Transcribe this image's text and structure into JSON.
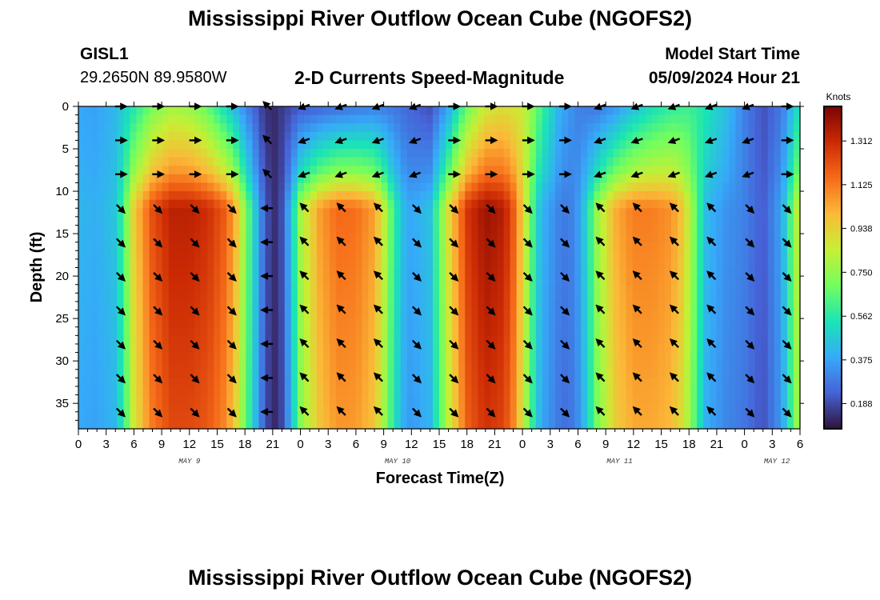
{
  "page": {
    "title": "Mississippi River Outflow Ocean Cube (NGOFS2)",
    "title_repeat": "Mississippi River Outflow Ocean Cube (NGOFS2)",
    "station_id": "GISL1",
    "station_coords": "29.2650N  89.9580W",
    "subtitle": "2-D Currents Speed-Magnitude",
    "model_start_label": "Model Start Time",
    "model_start_value": "05/09/2024 Hour 21"
  },
  "chart_data": {
    "type": "heatmap",
    "title": "2-D Currents Speed-Magnitude",
    "xlabel": "Forecast Time(Z)",
    "ylabel": "Depth (ft)",
    "x_range_hours": [
      0,
      78
    ],
    "x_tick_labels": [
      "0",
      "3",
      "6",
      "9",
      "12",
      "15",
      "18",
      "21",
      "0",
      "3",
      "6",
      "9",
      "12",
      "15",
      "18",
      "21",
      "0",
      "3",
      "6",
      "9",
      "12",
      "15",
      "18",
      "21",
      "0",
      "3",
      "6"
    ],
    "date_labels": [
      {
        "text": "MAY 9",
        "hour": 12
      },
      {
        "text": "MAY 10",
        "hour": 34.5
      },
      {
        "text": "MAY 11",
        "hour": 58.5
      },
      {
        "text": "MAY 12",
        "hour": 75.5
      }
    ],
    "ylim": [
      38,
      0
    ],
    "y_ticks": [
      0,
      5,
      10,
      15,
      20,
      25,
      30,
      35
    ],
    "colorbar": {
      "label": "Knots",
      "range": [
        0.08,
        1.46
      ],
      "ticks": [
        "1.312",
        "1.125",
        "0.938",
        "0.750",
        "0.562",
        "0.375",
        "0.188"
      ],
      "tick_values": [
        1.312,
        1.125,
        0.938,
        0.75,
        0.562,
        0.375,
        0.188
      ],
      "colors": [
        "#30123b",
        "#4662d7",
        "#36aaf9",
        "#1ae4b6",
        "#72fe5e",
        "#c7ef34",
        "#fbb938",
        "#f66b19",
        "#cb2a04",
        "#7a0403"
      ]
    },
    "speed_profile_upper": {
      "description": "approx. surface/near-surface speed (knots) vs forecast hour",
      "hours": [
        0,
        2,
        4,
        6,
        8,
        10,
        12,
        14,
        16,
        18,
        20,
        21,
        22,
        24,
        26,
        28,
        30,
        32,
        34,
        36,
        38,
        40,
        42,
        44,
        46,
        48,
        50,
        52,
        54,
        56,
        58,
        60,
        62,
        64,
        66,
        68,
        70,
        72,
        74,
        76,
        78
      ],
      "values": [
        0.38,
        0.37,
        0.42,
        0.55,
        0.7,
        0.78,
        0.76,
        0.66,
        0.5,
        0.32,
        0.16,
        0.12,
        0.16,
        0.22,
        0.24,
        0.26,
        0.28,
        0.3,
        0.28,
        0.24,
        0.2,
        0.38,
        0.68,
        0.86,
        0.9,
        0.86,
        0.62,
        0.4,
        0.3,
        0.28,
        0.34,
        0.44,
        0.52,
        0.58,
        0.6,
        0.54,
        0.44,
        0.3,
        0.2,
        0.28,
        0.55
      ]
    },
    "speed_profile_deep": {
      "description": "approx. speed (knots) below 11 ft vs forecast hour",
      "hours": [
        0,
        2,
        4,
        5,
        6,
        8,
        10,
        12,
        14,
        16,
        17,
        18,
        19,
        20,
        21,
        22,
        23,
        24,
        26,
        28,
        30,
        32,
        33,
        34,
        35,
        36,
        38,
        40,
        42,
        44,
        46,
        47,
        48,
        49,
        50,
        52,
        53,
        54,
        55,
        56,
        58,
        60,
        62,
        64,
        65,
        66,
        67,
        68,
        70,
        72,
        74,
        76,
        78
      ],
      "values": [
        0.42,
        0.4,
        0.46,
        0.65,
        0.95,
        1.22,
        1.34,
        1.34,
        1.3,
        1.18,
        1.0,
        0.75,
        0.5,
        0.26,
        0.12,
        0.2,
        0.45,
        0.78,
        1.05,
        1.16,
        1.15,
        1.05,
        0.85,
        0.62,
        0.44,
        0.38,
        0.45,
        0.9,
        1.28,
        1.4,
        1.35,
        1.2,
        0.95,
        0.65,
        0.42,
        0.3,
        0.28,
        0.36,
        0.52,
        0.75,
        1.02,
        1.12,
        1.12,
        1.08,
        1.0,
        0.85,
        0.6,
        0.42,
        0.34,
        0.3,
        0.22,
        0.38,
        0.9
      ]
    },
    "vector_rows_depth_ft": [
      0,
      4,
      8,
      12,
      16,
      20,
      24,
      28,
      32,
      36
    ],
    "vector_columns_hour": [
      4.5,
      8.5,
      12.5,
      16.5,
      20.5,
      24.5,
      28.5,
      32.5,
      36.5,
      40.5,
      44.5,
      48.5,
      52.5,
      56.5,
      60.5,
      64.5,
      68.5,
      72.5,
      76.5
    ],
    "vector_directions_deg_deep": [
      315,
      315,
      315,
      315,
      180,
      135,
      135,
      135,
      315,
      315,
      315,
      315,
      315,
      135,
      135,
      135,
      135,
      315,
      315
    ],
    "vector_directions_deg_upper": [
      0,
      0,
      0,
      0,
      135,
      200,
      200,
      200,
      200,
      0,
      0,
      0,
      0,
      200,
      200,
      200,
      200,
      200,
      0
    ]
  }
}
